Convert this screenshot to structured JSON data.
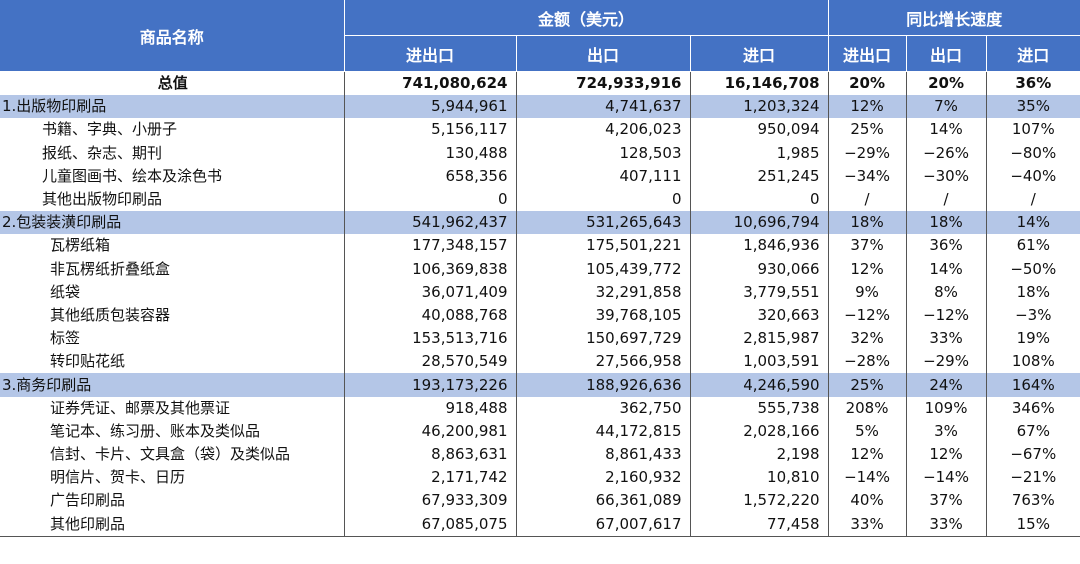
{
  "header": {
    "name_col": "商品名称",
    "amount_group": "金额（美元）",
    "growth_group": "同比增长速度",
    "sub_cols": [
      "进出口",
      "出口",
      "进口",
      "进出口",
      "出口",
      "进口"
    ]
  },
  "rows": [
    {
      "type": "total",
      "name": "总值",
      "total": "741,080,624",
      "export": "724,933,916",
      "import": "16,146,708",
      "g_total": "20%",
      "g_export": "20%",
      "g_import": "36%"
    },
    {
      "type": "cat",
      "name": "1.出版物印刷品",
      "total": "5,944,961",
      "export": "4,741,637",
      "import": "1,203,324",
      "g_total": "12%",
      "g_export": "7%",
      "g_import": "35%"
    },
    {
      "type": "sub",
      "name": "书籍、字典、小册子",
      "total": "5,156,117",
      "export": "4,206,023",
      "import": "950,094",
      "g_total": "25%",
      "g_export": "14%",
      "g_import": "107%"
    },
    {
      "type": "sub",
      "name": "报纸、杂志、期刊",
      "total": "130,488",
      "export": "128,503",
      "import": "1,985",
      "g_total": "−29%",
      "g_export": "−26%",
      "g_import": "−80%"
    },
    {
      "type": "sub",
      "name": "儿童图画书、绘本及涂色书",
      "total": "658,356",
      "export": "407,111",
      "import": "251,245",
      "g_total": "−34%",
      "g_export": "−30%",
      "g_import": "−40%"
    },
    {
      "type": "sub",
      "name": "其他出版物印刷品",
      "total": "0",
      "export": "0",
      "import": "0",
      "g_total": "/",
      "g_export": "/",
      "g_import": "/"
    },
    {
      "type": "cat",
      "name": "2.包装装潢印刷品",
      "total": "541,962,437",
      "export": "531,265,643",
      "import": "10,696,794",
      "g_total": "18%",
      "g_export": "18%",
      "g_import": "14%"
    },
    {
      "type": "sub",
      "name": "瓦楞纸箱",
      "total": "177,348,157",
      "export": "175,501,221",
      "import": "1,846,936",
      "g_total": "37%",
      "g_export": "36%",
      "g_import": "61%"
    },
    {
      "type": "sub",
      "name": "非瓦楞纸折叠纸盒",
      "total": "106,369,838",
      "export": "105,439,772",
      "import": "930,066",
      "g_total": "12%",
      "g_export": "14%",
      "g_import": "−50%"
    },
    {
      "type": "sub",
      "name": "纸袋",
      "total": "36,071,409",
      "export": "32,291,858",
      "import": "3,779,551",
      "g_total": "9%",
      "g_export": "8%",
      "g_import": "18%"
    },
    {
      "type": "sub",
      "name": "其他纸质包装容器",
      "total": "40,088,768",
      "export": "39,768,105",
      "import": "320,663",
      "g_total": "−12%",
      "g_export": "−12%",
      "g_import": "−3%"
    },
    {
      "type": "sub",
      "name": "标签",
      "total": "153,513,716",
      "export": "150,697,729",
      "import": "2,815,987",
      "g_total": "32%",
      "g_export": "33%",
      "g_import": "19%"
    },
    {
      "type": "sub",
      "name": "转印贴花纸",
      "total": "28,570,549",
      "export": "27,566,958",
      "import": "1,003,591",
      "g_total": "−28%",
      "g_export": "−29%",
      "g_import": "108%"
    },
    {
      "type": "cat",
      "name": "3.商务印刷品",
      "total": "193,173,226",
      "export": "188,926,636",
      "import": "4,246,590",
      "g_total": "25%",
      "g_export": "24%",
      "g_import": "164%"
    },
    {
      "type": "sub",
      "name": "证券凭证、邮票及其他票证",
      "total": "918,488",
      "export": "362,750",
      "import": "555,738",
      "g_total": "208%",
      "g_export": "109%",
      "g_import": "346%"
    },
    {
      "type": "sub",
      "name": "笔记本、练习册、账本及类似品",
      "total": "46,200,981",
      "export": "44,172,815",
      "import": "2,028,166",
      "g_total": "5%",
      "g_export": "3%",
      "g_import": "67%"
    },
    {
      "type": "sub",
      "name": "信封、卡片、文具盒（袋）及类似品",
      "total": "8,863,631",
      "export": "8,861,433",
      "import": "2,198",
      "g_total": "12%",
      "g_export": "12%",
      "g_import": "−67%"
    },
    {
      "type": "sub",
      "name": "明信片、贺卡、日历",
      "total": "2,171,742",
      "export": "2,160,932",
      "import": "10,810",
      "g_total": "−14%",
      "g_export": "−14%",
      "g_import": "−21%"
    },
    {
      "type": "sub",
      "name": "广告印刷品",
      "total": "67,933,309",
      "export": "66,361,089",
      "import": "1,572,220",
      "g_total": "40%",
      "g_export": "37%",
      "g_import": "763%"
    },
    {
      "type": "sub",
      "name": "其他印刷品",
      "total": "67,085,075",
      "export": "67,007,617",
      "import": "77,458",
      "g_total": "33%",
      "g_export": "33%",
      "g_import": "15%"
    }
  ]
}
